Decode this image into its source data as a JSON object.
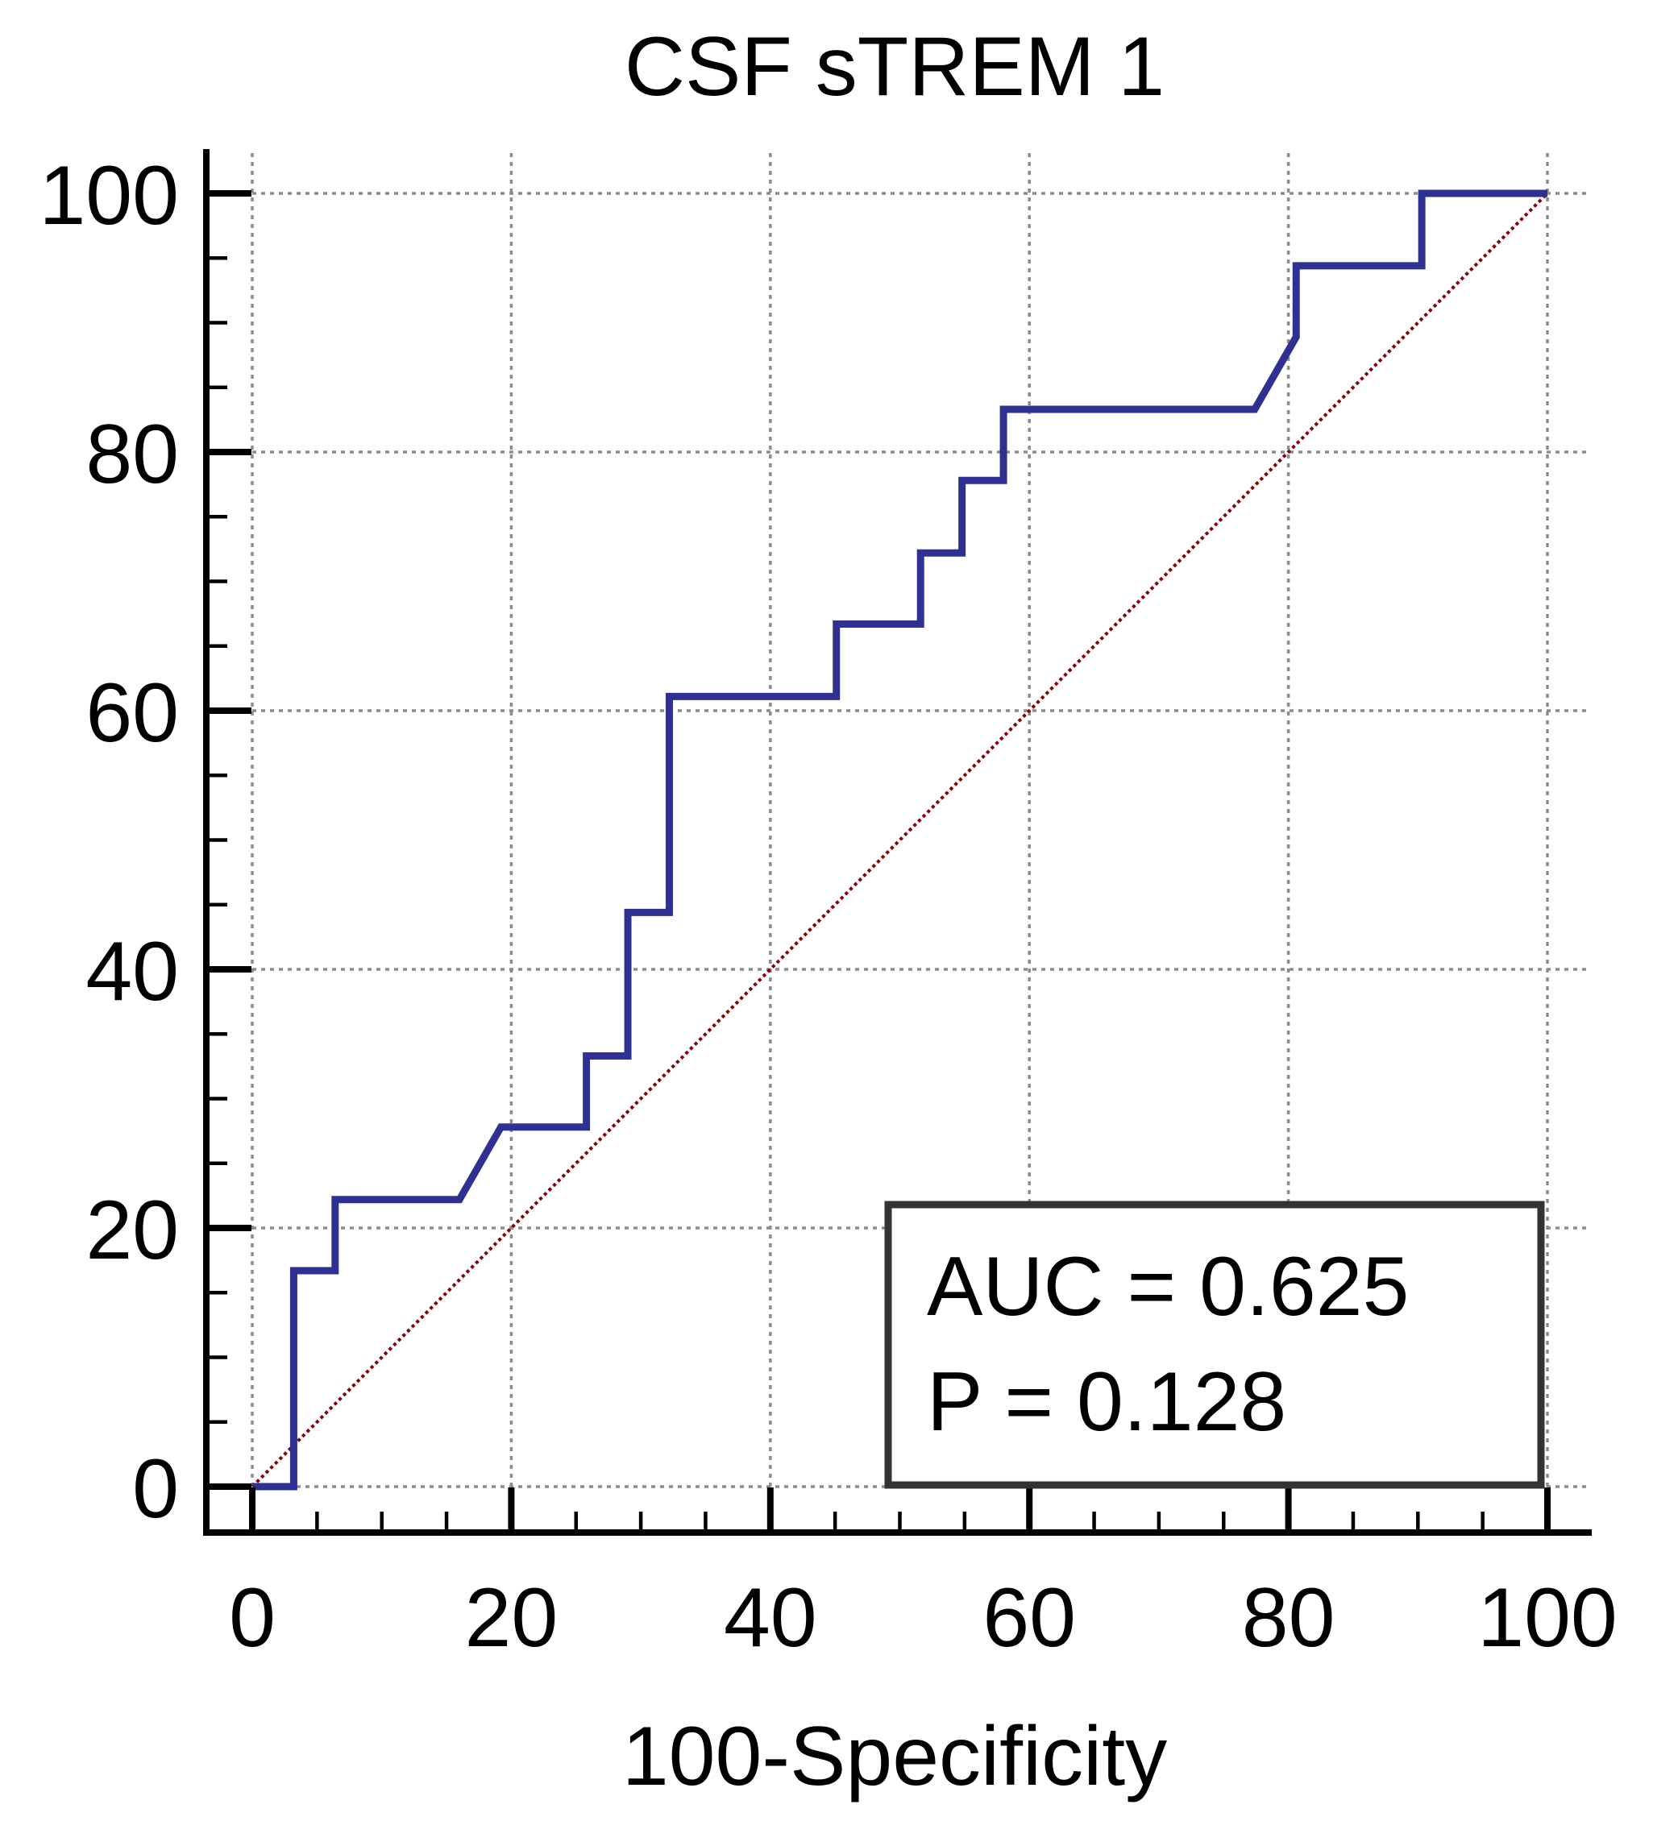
{
  "chart_data": {
    "type": "line",
    "title": "CSF sTREM 1",
    "xlabel": "100-Specificity",
    "ylabel": "",
    "xlim": [
      0,
      100
    ],
    "ylim": [
      0,
      100
    ],
    "x_ticks": [
      0,
      20,
      40,
      60,
      80,
      100
    ],
    "y_ticks": [
      0,
      20,
      40,
      60,
      80,
      100
    ],
    "x_tick_labels": [
      "0",
      "20",
      "40",
      "60",
      "80",
      "100"
    ],
    "y_tick_labels": [
      "0",
      "20",
      "40",
      "60",
      "80",
      "100"
    ],
    "grid": true,
    "series": [
      {
        "color": "#2e3192",
        "x": [
          0,
          3.2,
          3.2,
          6.4,
          6.4,
          16.0,
          19.2,
          25.8,
          25.8,
          29.0,
          29.0,
          32.2,
          32.2,
          45.1,
          45.1,
          51.6,
          51.6,
          54.8,
          54.8,
          58.0,
          58.0,
          77.4,
          80.6,
          80.6,
          90.3,
          90.3,
          100
        ],
        "y": [
          0,
          0,
          16.7,
          16.7,
          22.2,
          22.2,
          27.8,
          27.8,
          33.3,
          33.3,
          44.4,
          44.4,
          61.1,
          61.1,
          66.7,
          66.7,
          72.2,
          72.2,
          77.8,
          77.8,
          83.3,
          83.3,
          88.9,
          94.4,
          94.4,
          100,
          100
        ]
      },
      {
        "color": "#8b0000",
        "style": "dotted",
        "x": [
          0,
          100
        ],
        "y": [
          0,
          100
        ]
      }
    ],
    "annotations": {
      "auc_text": "AUC = 0.625",
      "p_text": "P = 0.128"
    }
  }
}
